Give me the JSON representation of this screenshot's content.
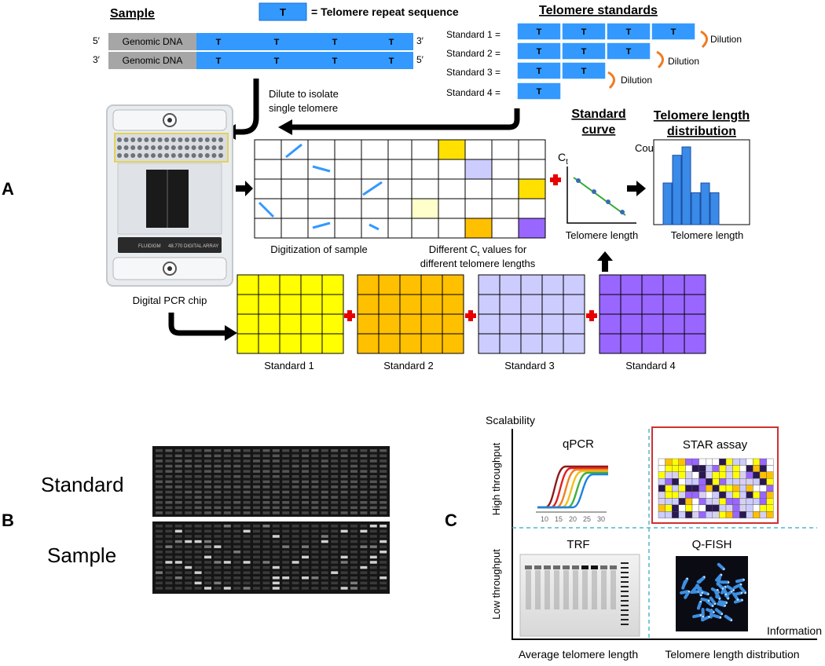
{
  "panel_a": {
    "letter": "A",
    "sample_title": "Sample",
    "legend_box_letter": "T",
    "legend_text": "= Telomere repeat sequence",
    "dna_rows": [
      {
        "left_end": "5′",
        "label": "Genomic DNA",
        "right_end": "3′"
      },
      {
        "left_end": "3′",
        "label": "Genomic DNA",
        "right_end": "5′"
      }
    ],
    "repeat_letter": "T",
    "dilute_note_1": "Dilute to isolate",
    "dilute_note_2": "single telomere",
    "standards_title": "Telomere standards",
    "standards": [
      {
        "label": "Standard 1 =",
        "repeats": 4,
        "dilution": "Dilution"
      },
      {
        "label": "Standard 2 =",
        "repeats": 3,
        "dilution": "Dilution"
      },
      {
        "label": "Standard 3 =",
        "repeats": 2,
        "dilution": "Dilution"
      },
      {
        "label": "Standard 4 =",
        "repeats": 1,
        "dilution": ""
      }
    ],
    "chip_brand": "FLUIDIGM",
    "chip_model": "48.770 DIGITAL ARRAY",
    "chip_caption": "Digital PCR chip",
    "digitization_caption": "Digitization of sample",
    "ct_caption_1_pre": "Different C",
    "ct_caption_1_sub": "t",
    "ct_caption_1_post": " values for",
    "ct_caption_2": "different telomere lengths",
    "std_curve_title_1": "Standard",
    "std_curve_title_2": "curve",
    "ct_axis_main": "C",
    "ct_axis_sub": "t",
    "std_curve_xlabel": "Telomere length",
    "dist_title_1": "Telomere length",
    "dist_title_2": "distribution",
    "dist_ylabel": "Count",
    "dist_xlabel": "Telomere   length",
    "histogram_values": [
      3,
      5,
      5.6,
      2.3,
      3,
      2.3
    ],
    "standard_grids": [
      {
        "label": "Standard  1",
        "color": "#ffff00"
      },
      {
        "label": "Standard  2",
        "color": "#ffc000"
      },
      {
        "label": "Standard  3",
        "color": "#ccccff"
      },
      {
        "label": "Standard  4",
        "color": "#9966ff"
      }
    ]
  },
  "panel_b": {
    "letter": "B",
    "standard_label": "Standard",
    "sample_label": "Sample"
  },
  "panel_c": {
    "letter": "C",
    "y_axis_title": "Scalability",
    "x_axis_title": "Information",
    "high_label": "High throughput",
    "low_label": "Low throughput",
    "avg_label": "Average telomere length",
    "dist_label": "Telomere length distribution",
    "qpcr_label": "qPCR",
    "qpcr_ticks": [
      "10",
      "15",
      "20",
      "25",
      "30"
    ],
    "star_label": "STAR assay",
    "trf_label": "TRF",
    "qfish_label": "Q-FISH",
    "accent_color": "#e03030",
    "divider_color": "#4fb8c8"
  }
}
